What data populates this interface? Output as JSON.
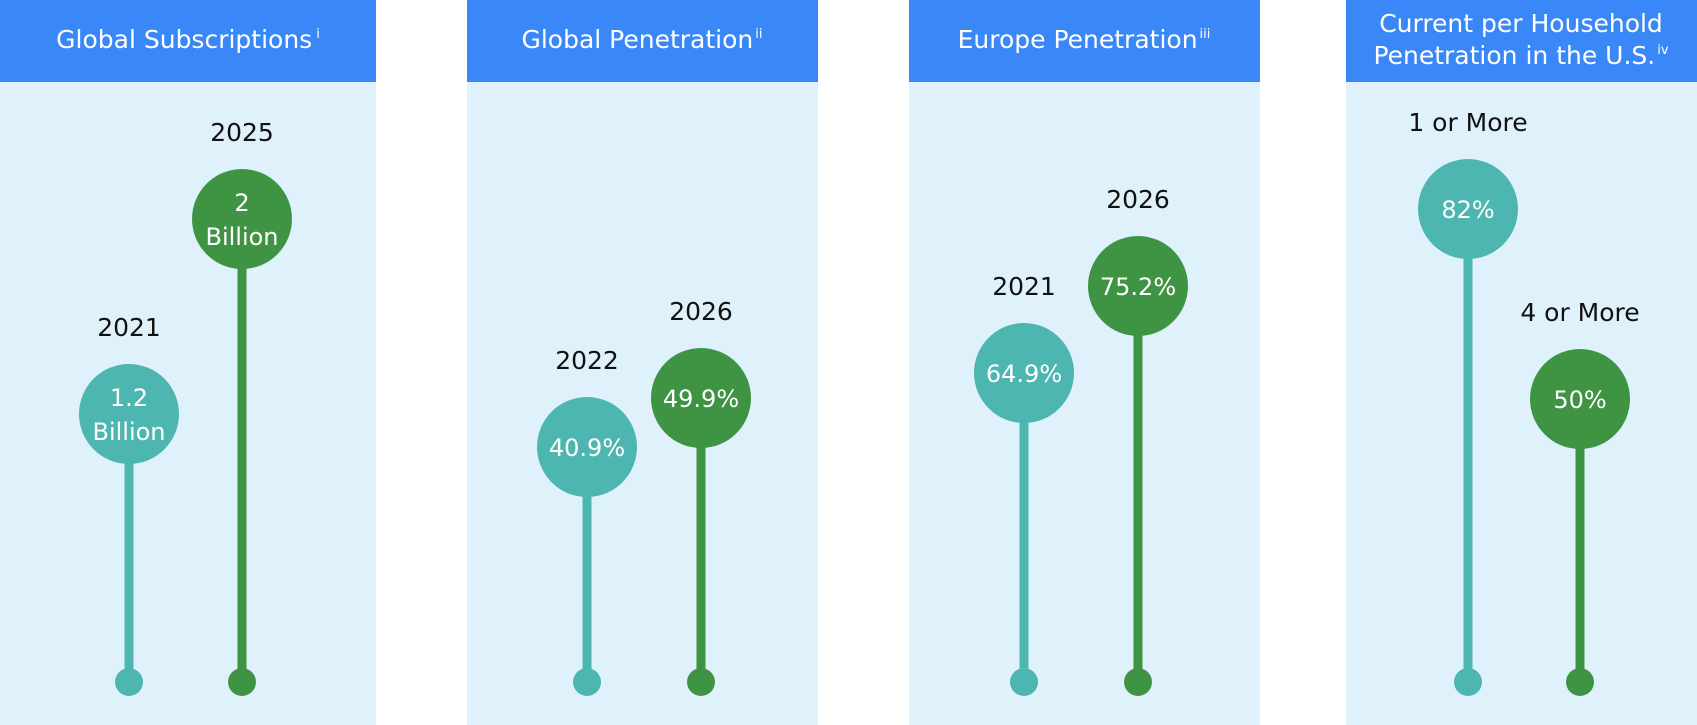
{
  "colors": {
    "panel_background": "#dff2fb",
    "header": "#3a88f8",
    "teal": "#4db6b0",
    "green": "#3f9444"
  },
  "chart_data": [
    {
      "type": "lollipop",
      "title": "Global Subscriptions",
      "title_superscript": "i",
      "categories": [
        "2021",
        "2025"
      ],
      "values": [
        1.2,
        2
      ],
      "unit": "Billion",
      "value_labels": [
        [
          "1.2",
          "Billion"
        ],
        [
          "2",
          "Billion"
        ]
      ],
      "colors": [
        "#4db6b0",
        "#3f9444"
      ]
    },
    {
      "type": "lollipop",
      "title": "Global Penetration",
      "title_superscript": "ii",
      "categories": [
        "2022",
        "2026"
      ],
      "values": [
        40.9,
        49.9
      ],
      "unit": "%",
      "value_labels": [
        [
          "40.9%"
        ],
        [
          "49.9%"
        ]
      ],
      "colors": [
        "#4db6b0",
        "#3f9444"
      ]
    },
    {
      "type": "lollipop",
      "title": "Europe Penetration",
      "title_superscript": "iii",
      "categories": [
        "2021",
        "2026"
      ],
      "values": [
        64.9,
        75.2
      ],
      "unit": "%",
      "value_labels": [
        [
          "64.9%"
        ],
        [
          "75.2%"
        ]
      ],
      "colors": [
        "#4db6b0",
        "#3f9444"
      ]
    },
    {
      "type": "lollipop",
      "title_lines": [
        "Current per Household",
        "Penetration in the U.S."
      ],
      "title_superscript": "iv",
      "categories": [
        "1 or More",
        "4 or More"
      ],
      "values": [
        82,
        50
      ],
      "unit": "%",
      "value_labels": [
        [
          "82%"
        ],
        [
          "50%"
        ]
      ],
      "colors": [
        "#4db6b0",
        "#3f9444"
      ]
    }
  ]
}
